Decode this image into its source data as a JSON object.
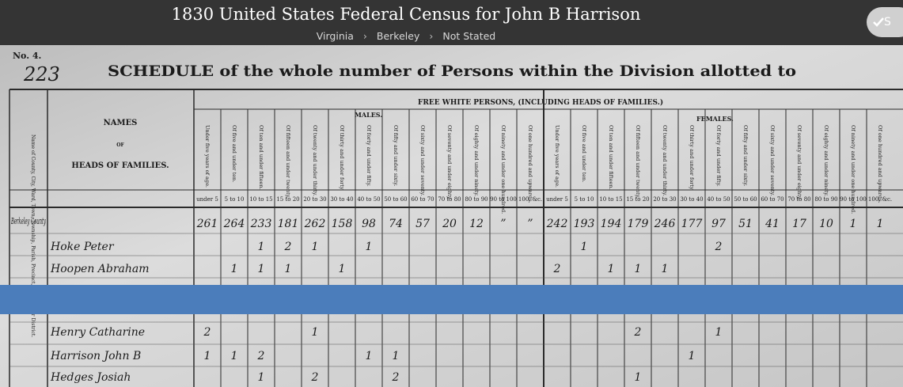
{
  "header": {
    "title": "1830 United States Federal Census for John B Harrison",
    "breadcrumbs": [
      "Virginia",
      "Berkeley",
      "Not Stated"
    ],
    "button": "S"
  },
  "document": {
    "page_label": "No. 4.",
    "page_number": "223",
    "heading": "SCHEDULE of the whole number of Persons within the Division allotted to",
    "group_header": "FREE WHITE PERSONS, (INCLUDING HEADS OF FAMILIES.)",
    "males": "MALES.",
    "females": "FEMALES.",
    "division_header": "Name of County, City, Ward, Town, Township, Parish, Precinct, Hundred, or District.",
    "names_header": [
      "NAMES",
      "OF",
      "HEADS OF FAMILIES."
    ],
    "age_headers": [
      "Under five years of age.",
      "Of five and under ten.",
      "Of ten and under fifteen.",
      "Of fifteen and under twenty.",
      "Of twenty and under thirty.",
      "Of thirty and under forty.",
      "Of forty and under fifty.",
      "Of fifty and under sixty.",
      "Of sixty and under seventy.",
      "Of seventy and under eighty.",
      "Of eighty and under ninety.",
      "Of ninety and under one hundred.",
      "Of one hundred and upwards."
    ],
    "age_ranges": [
      "under 5",
      "5 to 10",
      "10 to 15",
      "15 to 20",
      "20 to 30",
      "30 to 40",
      "40 to 50",
      "50 to 60",
      "60 to 70",
      "70 to 80",
      "80 to 90",
      "90 to 100",
      "100, &c."
    ],
    "rows": [
      {
        "division": "Berkeley County",
        "name": null,
        "males": [
          "261",
          "264",
          "233",
          "181",
          "262",
          "158",
          "98",
          "74",
          "57",
          "20",
          "12",
          "”",
          "”"
        ],
        "females": [
          "242",
          "193",
          "194",
          "179",
          "246",
          "177",
          "97",
          "51",
          "41",
          "17",
          "10",
          "1",
          "1"
        ]
      },
      {
        "division": null,
        "name": "Hoke Peter",
        "males": [
          null,
          null,
          "1",
          "2",
          "1",
          null,
          "1",
          null,
          null,
          null,
          null,
          null,
          null
        ],
        "females": [
          null,
          "1",
          null,
          null,
          null,
          null,
          "2",
          null,
          null,
          null,
          null,
          null,
          null
        ]
      },
      {
        "division": null,
        "name": "Hoopen Abraham",
        "males": [
          null,
          "1",
          "1",
          "1",
          null,
          "1",
          null,
          null,
          null,
          null,
          null,
          null,
          null
        ],
        "females": [
          "2",
          null,
          "1",
          "1",
          "1",
          null,
          null,
          null,
          null,
          null,
          null,
          null,
          null
        ]
      },
      {
        "division": null,
        "name": "Henry Catharine",
        "males": [
          "2",
          null,
          null,
          null,
          "1",
          null,
          null,
          null,
          null,
          null,
          null,
          null,
          null
        ],
        "females": [
          null,
          null,
          null,
          "2",
          null,
          null,
          "1",
          null,
          null,
          null,
          null,
          null,
          null
        ]
      },
      {
        "division": null,
        "name": "Harrison John B",
        "males": [
          "1",
          "1",
          "2",
          null,
          null,
          null,
          "1",
          "1",
          null,
          null,
          null,
          null,
          null
        ],
        "females": [
          null,
          null,
          null,
          null,
          null,
          "1",
          null,
          null,
          null,
          null,
          null,
          null,
          null
        ]
      },
      {
        "division": null,
        "name": "Hedges Josiah",
        "males": [
          null,
          null,
          "1",
          null,
          "2",
          null,
          null,
          "2",
          null,
          null,
          null,
          null,
          null
        ],
        "females": [
          null,
          null,
          null,
          "1",
          null,
          null,
          null,
          null,
          null,
          null,
          null,
          null,
          null
        ]
      }
    ]
  }
}
